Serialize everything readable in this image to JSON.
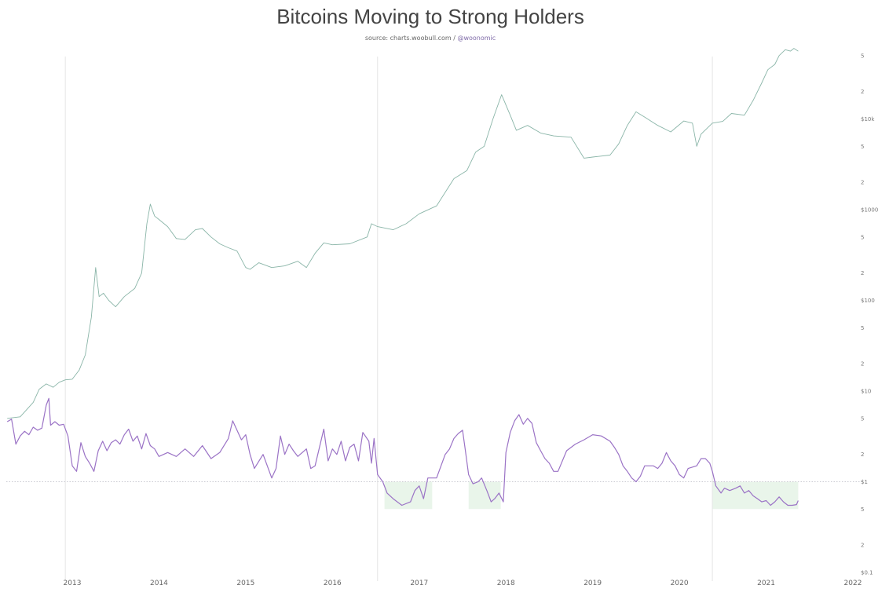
{
  "chart_data": {
    "type": "line",
    "title": "Bitcoins Moving to Strong Holders",
    "subtitle_prefix": "source: charts.woobull.com / ",
    "subtitle_handle": "@woonomic",
    "x_ticks": [
      "2013",
      "2014",
      "2015",
      "2016",
      "2017",
      "2018",
      "2019",
      "2020",
      "2021",
      "2022"
    ],
    "y_ticks": [
      "5",
      "2",
      "$10k",
      "5",
      "2",
      "$1000",
      "5",
      "2",
      "$100",
      "5",
      "2",
      "$10",
      "5",
      "2",
      "$1",
      "5",
      "2",
      "$0.1"
    ],
    "y_scale": "log",
    "ylim": [
      0.1,
      60000
    ],
    "xlim": [
      2012.25,
      2022.0
    ],
    "grid": false,
    "threshold": 1.0,
    "vertical_markers": [
      2012.92,
      2016.52,
      2020.38
    ],
    "highlight_regions": [
      [
        2016.6,
        2017.15
      ],
      [
        2017.57,
        2017.94
      ],
      [
        2020.38,
        2021.37
      ]
    ],
    "series": [
      {
        "color": "#8ab5a8",
        "points": [
          [
            2012.25,
            5.0
          ],
          [
            2012.4,
            5.2
          ],
          [
            2012.55,
            7.5
          ],
          [
            2012.62,
            10.5
          ],
          [
            2012.7,
            12.0
          ],
          [
            2012.78,
            11.0
          ],
          [
            2012.85,
            12.5
          ],
          [
            2012.92,
            13.3
          ],
          [
            2013.0,
            13.5
          ],
          [
            2013.08,
            17.0
          ],
          [
            2013.15,
            25.0
          ],
          [
            2013.22,
            65.0
          ],
          [
            2013.27,
            230.0
          ],
          [
            2013.31,
            110.0
          ],
          [
            2013.36,
            120.0
          ],
          [
            2013.42,
            100.0
          ],
          [
            2013.5,
            85.0
          ],
          [
            2013.6,
            110.0
          ],
          [
            2013.72,
            135.0
          ],
          [
            2013.8,
            200.0
          ],
          [
            2013.86,
            700.0
          ],
          [
            2013.9,
            1150.0
          ],
          [
            2013.95,
            850.0
          ],
          [
            2014.0,
            780.0
          ],
          [
            2014.1,
            650.0
          ],
          [
            2014.2,
            480.0
          ],
          [
            2014.3,
            470.0
          ],
          [
            2014.42,
            600.0
          ],
          [
            2014.5,
            620.0
          ],
          [
            2014.6,
            500.0
          ],
          [
            2014.7,
            420.0
          ],
          [
            2014.8,
            380.0
          ],
          [
            2014.9,
            350.0
          ],
          [
            2015.0,
            230.0
          ],
          [
            2015.05,
            220.0
          ],
          [
            2015.15,
            260.0
          ],
          [
            2015.3,
            230.0
          ],
          [
            2015.45,
            240.0
          ],
          [
            2015.6,
            270.0
          ],
          [
            2015.7,
            230.0
          ],
          [
            2015.8,
            330.0
          ],
          [
            2015.9,
            430.0
          ],
          [
            2016.0,
            410.0
          ],
          [
            2016.2,
            420.0
          ],
          [
            2016.4,
            500.0
          ],
          [
            2016.45,
            700.0
          ],
          [
            2016.52,
            650.0
          ],
          [
            2016.7,
            600.0
          ],
          [
            2016.85,
            700.0
          ],
          [
            2017.0,
            900.0
          ],
          [
            2017.2,
            1100.0
          ],
          [
            2017.4,
            2200.0
          ],
          [
            2017.55,
            2700.0
          ],
          [
            2017.65,
            4300.0
          ],
          [
            2017.75,
            5000.0
          ],
          [
            2017.85,
            10000.0
          ],
          [
            2017.95,
            18500.0
          ],
          [
            2018.05,
            11000.0
          ],
          [
            2018.12,
            7500.0
          ],
          [
            2018.25,
            8500.0
          ],
          [
            2018.4,
            7000.0
          ],
          [
            2018.55,
            6500.0
          ],
          [
            2018.75,
            6300.0
          ],
          [
            2018.9,
            3700.0
          ],
          [
            2019.0,
            3800.0
          ],
          [
            2019.2,
            4000.0
          ],
          [
            2019.3,
            5300.0
          ],
          [
            2019.4,
            8500.0
          ],
          [
            2019.5,
            12000.0
          ],
          [
            2019.6,
            10500.0
          ],
          [
            2019.75,
            8500.0
          ],
          [
            2019.9,
            7200.0
          ],
          [
            2020.05,
            9500.0
          ],
          [
            2020.15,
            9000.0
          ],
          [
            2020.2,
            5000.0
          ],
          [
            2020.25,
            6800.0
          ],
          [
            2020.38,
            9000.0
          ],
          [
            2020.5,
            9400.0
          ],
          [
            2020.6,
            11500.0
          ],
          [
            2020.75,
            11000.0
          ],
          [
            2020.85,
            16000.0
          ],
          [
            2020.95,
            25000.0
          ],
          [
            2021.02,
            35000.0
          ],
          [
            2021.1,
            40000.0
          ],
          [
            2021.15,
            50000.0
          ],
          [
            2021.22,
            58000.0
          ],
          [
            2021.28,
            56000.0
          ],
          [
            2021.32,
            60000.0
          ],
          [
            2021.37,
            56000.0
          ]
        ]
      },
      {
        "color": "#9b73c6",
        "points": [
          [
            2012.25,
            4.6
          ],
          [
            2012.3,
            4.9
          ],
          [
            2012.35,
            2.6
          ],
          [
            2012.4,
            3.2
          ],
          [
            2012.45,
            3.6
          ],
          [
            2012.5,
            3.3
          ],
          [
            2012.55,
            4.0
          ],
          [
            2012.6,
            3.7
          ],
          [
            2012.65,
            3.9
          ],
          [
            2012.7,
            7.0
          ],
          [
            2012.73,
            8.3
          ],
          [
            2012.75,
            4.2
          ],
          [
            2012.8,
            4.6
          ],
          [
            2012.85,
            4.2
          ],
          [
            2012.9,
            4.3
          ],
          [
            2012.95,
            3.2
          ],
          [
            2013.0,
            1.5
          ],
          [
            2013.05,
            1.3
          ],
          [
            2013.1,
            2.7
          ],
          [
            2013.15,
            1.9
          ],
          [
            2013.2,
            1.6
          ],
          [
            2013.25,
            1.3
          ],
          [
            2013.3,
            2.2
          ],
          [
            2013.35,
            2.8
          ],
          [
            2013.4,
            2.2
          ],
          [
            2013.45,
            2.7
          ],
          [
            2013.5,
            2.9
          ],
          [
            2013.55,
            2.6
          ],
          [
            2013.6,
            3.3
          ],
          [
            2013.65,
            3.8
          ],
          [
            2013.7,
            2.8
          ],
          [
            2013.75,
            3.2
          ],
          [
            2013.8,
            2.3
          ],
          [
            2013.85,
            3.4
          ],
          [
            2013.9,
            2.5
          ],
          [
            2013.95,
            2.3
          ],
          [
            2014.0,
            1.9
          ],
          [
            2014.1,
            2.1
          ],
          [
            2014.2,
            1.9
          ],
          [
            2014.3,
            2.3
          ],
          [
            2014.4,
            1.9
          ],
          [
            2014.5,
            2.5
          ],
          [
            2014.6,
            1.8
          ],
          [
            2014.7,
            2.1
          ],
          [
            2014.8,
            3.0
          ],
          [
            2014.85,
            4.7
          ],
          [
            2014.9,
            3.7
          ],
          [
            2014.95,
            2.9
          ],
          [
            2015.0,
            3.3
          ],
          [
            2015.05,
            2.0
          ],
          [
            2015.1,
            1.4
          ],
          [
            2015.2,
            2.0
          ],
          [
            2015.3,
            1.1
          ],
          [
            2015.35,
            1.4
          ],
          [
            2015.4,
            3.2
          ],
          [
            2015.45,
            2.0
          ],
          [
            2015.5,
            2.6
          ],
          [
            2015.55,
            2.2
          ],
          [
            2015.6,
            1.9
          ],
          [
            2015.7,
            2.3
          ],
          [
            2015.75,
            1.4
          ],
          [
            2015.8,
            1.5
          ],
          [
            2015.9,
            3.8
          ],
          [
            2015.95,
            1.7
          ],
          [
            2016.0,
            2.3
          ],
          [
            2016.05,
            2.0
          ],
          [
            2016.1,
            2.8
          ],
          [
            2016.15,
            1.7
          ],
          [
            2016.2,
            2.4
          ],
          [
            2016.25,
            2.6
          ],
          [
            2016.3,
            1.7
          ],
          [
            2016.35,
            3.5
          ],
          [
            2016.42,
            2.8
          ],
          [
            2016.45,
            1.6
          ],
          [
            2016.48,
            3.0
          ],
          [
            2016.52,
            1.2
          ],
          [
            2016.58,
            1.0
          ],
          [
            2016.63,
            0.75
          ],
          [
            2016.7,
            0.65
          ],
          [
            2016.8,
            0.55
          ],
          [
            2016.9,
            0.6
          ],
          [
            2016.95,
            0.8
          ],
          [
            2017.0,
            0.9
          ],
          [
            2017.05,
            0.65
          ],
          [
            2017.1,
            1.1
          ],
          [
            2017.2,
            1.1
          ],
          [
            2017.3,
            2.0
          ],
          [
            2017.35,
            2.3
          ],
          [
            2017.4,
            3.0
          ],
          [
            2017.45,
            3.4
          ],
          [
            2017.5,
            3.7
          ],
          [
            2017.53,
            2.3
          ],
          [
            2017.57,
            1.2
          ],
          [
            2017.62,
            0.95
          ],
          [
            2017.68,
            1.0
          ],
          [
            2017.72,
            1.1
          ],
          [
            2017.78,
            0.8
          ],
          [
            2017.83,
            0.6
          ],
          [
            2017.87,
            0.65
          ],
          [
            2017.92,
            0.75
          ],
          [
            2017.97,
            0.6
          ],
          [
            2018.0,
            2.1
          ],
          [
            2018.05,
            3.5
          ],
          [
            2018.1,
            4.7
          ],
          [
            2018.15,
            5.5
          ],
          [
            2018.2,
            4.3
          ],
          [
            2018.25,
            5.0
          ],
          [
            2018.3,
            4.4
          ],
          [
            2018.35,
            2.7
          ],
          [
            2018.4,
            2.2
          ],
          [
            2018.45,
            1.8
          ],
          [
            2018.5,
            1.6
          ],
          [
            2018.55,
            1.3
          ],
          [
            2018.6,
            1.3
          ],
          [
            2018.7,
            2.2
          ],
          [
            2018.8,
            2.6
          ],
          [
            2018.9,
            2.9
          ],
          [
            2019.0,
            3.3
          ],
          [
            2019.1,
            3.2
          ],
          [
            2019.2,
            2.8
          ],
          [
            2019.25,
            2.4
          ],
          [
            2019.3,
            2.0
          ],
          [
            2019.35,
            1.5
          ],
          [
            2019.4,
            1.3
          ],
          [
            2019.45,
            1.1
          ],
          [
            2019.5,
            1.0
          ],
          [
            2019.55,
            1.15
          ],
          [
            2019.6,
            1.5
          ],
          [
            2019.7,
            1.5
          ],
          [
            2019.75,
            1.4
          ],
          [
            2019.8,
            1.6
          ],
          [
            2019.85,
            2.1
          ],
          [
            2019.9,
            1.7
          ],
          [
            2019.95,
            1.5
          ],
          [
            2020.0,
            1.2
          ],
          [
            2020.05,
            1.1
          ],
          [
            2020.1,
            1.4
          ],
          [
            2020.2,
            1.5
          ],
          [
            2020.25,
            1.8
          ],
          [
            2020.3,
            1.8
          ],
          [
            2020.35,
            1.6
          ],
          [
            2020.38,
            1.3
          ],
          [
            2020.42,
            0.9
          ],
          [
            2020.48,
            0.75
          ],
          [
            2020.52,
            0.85
          ],
          [
            2020.58,
            0.8
          ],
          [
            2020.65,
            0.85
          ],
          [
            2020.7,
            0.9
          ],
          [
            2020.75,
            0.75
          ],
          [
            2020.8,
            0.8
          ],
          [
            2020.85,
            0.7
          ],
          [
            2020.9,
            0.65
          ],
          [
            2020.95,
            0.6
          ],
          [
            2021.0,
            0.62
          ],
          [
            2021.05,
            0.55
          ],
          [
            2021.1,
            0.6
          ],
          [
            2021.15,
            0.68
          ],
          [
            2021.2,
            0.6
          ],
          [
            2021.25,
            0.55
          ],
          [
            2021.3,
            0.55
          ],
          [
            2021.35,
            0.56
          ],
          [
            2021.37,
            0.62
          ]
        ]
      }
    ]
  }
}
